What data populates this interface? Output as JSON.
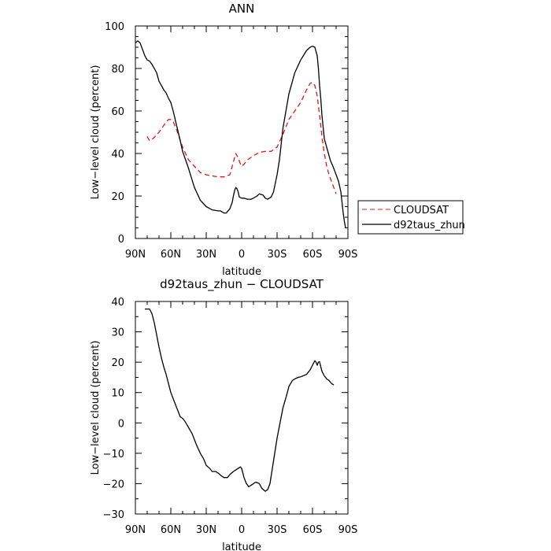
{
  "colors": {
    "black": "#000000",
    "red": "#e8141b",
    "background": "#ffffff"
  },
  "chart_data": [
    {
      "type": "line",
      "title": "ANN",
      "xlabel": "latitude",
      "ylabel": "Low−level cloud (percent)",
      "xlim": [
        90,
        -90
      ],
      "ylim": [
        0,
        100
      ],
      "xticks": [
        90,
        60,
        30,
        0,
        -30,
        -60,
        -90
      ],
      "xtick_labels": [
        "90N",
        "60N",
        "30N",
        "0",
        "30S",
        "60S",
        "90S"
      ],
      "yticks": [
        0,
        20,
        40,
        60,
        80,
        100
      ],
      "ytick_labels": [
        "0",
        "20",
        "40",
        "60",
        "80",
        "100"
      ],
      "legend_position": "right",
      "series": [
        {
          "name": "CLOUDSAT",
          "color": "#e8141b",
          "dash": true,
          "x": [
            80,
            78,
            75,
            70,
            65,
            62,
            60,
            58,
            55,
            50,
            45,
            40,
            35,
            30,
            25,
            20,
            15,
            10,
            8,
            6,
            5,
            3,
            1,
            0,
            -2,
            -5,
            -10,
            -15,
            -20,
            -25,
            -30,
            -35,
            -40,
            -45,
            -50,
            -55,
            -58,
            -60,
            -62,
            -64,
            -66,
            -68,
            -70,
            -72,
            -74,
            -76,
            -78,
            -80
          ],
          "y": [
            48,
            46,
            47,
            50,
            54,
            56,
            56,
            55,
            51,
            43,
            37,
            34,
            31,
            30,
            29.5,
            29,
            29,
            30,
            34,
            38,
            40,
            38,
            35,
            34,
            35,
            37,
            39,
            40.5,
            41,
            41,
            43,
            49,
            56,
            60,
            64,
            70,
            73,
            73.5,
            72,
            67,
            58,
            48,
            40,
            34,
            30,
            27,
            24,
            21
          ]
        },
        {
          "name": "d92taus_zhun",
          "color": "#000000",
          "dash": false,
          "x": [
            90,
            88,
            86,
            84,
            82,
            80,
            78,
            76,
            75,
            72,
            70,
            68,
            66,
            64,
            62,
            60,
            58,
            55,
            52,
            50,
            45,
            40,
            35,
            30,
            25,
            20,
            18,
            15,
            13,
            10,
            8,
            7,
            6,
            5,
            4,
            3,
            2,
            0,
            -2,
            -5,
            -8,
            -10,
            -13,
            -15,
            -18,
            -20,
            -22,
            -25,
            -27,
            -30,
            -32,
            -35,
            -40,
            -45,
            -50,
            -55,
            -58,
            -60,
            -62,
            -64,
            -65,
            -66,
            -67,
            -68,
            -70,
            -72,
            -75,
            -78,
            -80,
            -82,
            -84,
            -85,
            -86,
            -87,
            -88
          ],
          "y": [
            92,
            93,
            92,
            89,
            86,
            84,
            83.5,
            82,
            81,
            78,
            74,
            72,
            70,
            68.5,
            66,
            64,
            60,
            53,
            46,
            41,
            33,
            24,
            18,
            15,
            13.5,
            13,
            13,
            12,
            12,
            14,
            17,
            20,
            22.5,
            24,
            23.5,
            22,
            19.5,
            19,
            19,
            18.5,
            18.5,
            19,
            20,
            21,
            20.5,
            19,
            18.5,
            19.5,
            22,
            30,
            37,
            52,
            68,
            78,
            84,
            88.5,
            90,
            90.5,
            90,
            86,
            80,
            72,
            66,
            58,
            47,
            43,
            37,
            33,
            30,
            27,
            22,
            17,
            12,
            8,
            5
          ]
        }
      ]
    },
    {
      "type": "line",
      "title": "d92taus_zhun − CLOUDSAT",
      "xlabel": "latitude",
      "ylabel": "Low−level cloud (percent)",
      "xlim": [
        90,
        -90
      ],
      "ylim": [
        -30,
        40
      ],
      "xticks": [
        90,
        60,
        30,
        0,
        -30,
        -60,
        -90
      ],
      "xtick_labels": [
        "90N",
        "60N",
        "30N",
        "0",
        "30S",
        "60S",
        "90S"
      ],
      "yticks": [
        -30,
        -20,
        -10,
        0,
        10,
        20,
        30,
        40
      ],
      "ytick_labels": [
        "−30",
        "−20",
        "−10",
        "0",
        "10",
        "20",
        "30",
        "40"
      ],
      "series": [
        {
          "color": "#000000",
          "dash": false,
          "x": [
            82,
            80,
            78,
            76,
            74,
            72,
            70,
            68,
            66,
            64,
            62,
            60,
            58,
            55,
            52,
            50,
            48,
            45,
            42,
            40,
            38,
            35,
            32,
            30,
            27,
            25,
            22,
            20,
            17,
            15,
            12,
            10,
            7,
            5,
            3,
            1,
            0,
            -2,
            -4,
            -6,
            -8,
            -10,
            -12,
            -15,
            -17,
            -20,
            -22,
            -24,
            -26,
            -28,
            -30,
            -33,
            -35,
            -38,
            -40,
            -43,
            -45,
            -48,
            -50,
            -55,
            -58,
            -60,
            -62,
            -63,
            -64,
            -65,
            -66,
            -67,
            -68,
            -70,
            -72,
            -74,
            -76,
            -78
          ],
          "y": [
            37.5,
            37.5,
            37.5,
            36,
            33,
            29,
            25,
            21.5,
            18.5,
            16,
            13,
            10,
            8,
            5,
            2,
            1.5,
            0.5,
            -1.5,
            -3.5,
            -5.5,
            -7.5,
            -10,
            -12,
            -14,
            -15,
            -16,
            -16,
            -16.5,
            -17.5,
            -18,
            -18,
            -17,
            -16,
            -15.5,
            -15,
            -14.5,
            -15,
            -18,
            -20,
            -21,
            -20.5,
            -20,
            -19.5,
            -20,
            -21.5,
            -22.5,
            -22,
            -20,
            -15,
            -10,
            -5,
            1,
            5,
            9,
            12,
            14,
            14.5,
            15,
            15.2,
            16,
            17.5,
            19,
            20.5,
            20,
            19,
            20,
            20.2,
            18.5,
            17,
            15.5,
            14.5,
            14,
            13,
            12.5
          ]
        }
      ]
    }
  ]
}
